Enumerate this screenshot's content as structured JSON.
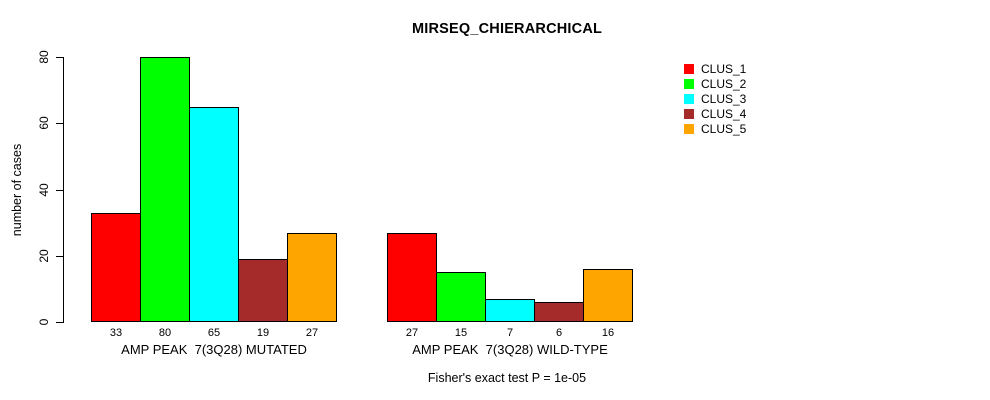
{
  "title": "MIRSEQ_CHIERARCHICAL",
  "footer": "Fisher's exact test P = 1e-05",
  "legend": {
    "position": "top-right",
    "items": [
      {
        "label": "CLUS_1",
        "color": "#FF0000"
      },
      {
        "label": "CLUS_2",
        "color": "#00FF00"
      },
      {
        "label": "CLUS_3",
        "color": "#00FFFF"
      },
      {
        "label": "CLUS_4",
        "color": "#A52A2A"
      },
      {
        "label": "CLUS_5",
        "color": "#FFA500"
      }
    ]
  },
  "chart_data": {
    "type": "bar",
    "title": "MIRSEQ_CHIERARCHICAL",
    "xlabel": "",
    "ylabel": "number of cases",
    "ylim": [
      0,
      80
    ],
    "y_ticks": [
      0,
      20,
      40,
      60,
      80
    ],
    "grid": false,
    "legend_position": "top-right",
    "categories": [
      "AMP PEAK  7(3Q28) MUTATED",
      "AMP PEAK  7(3Q28) WILD-TYPE"
    ],
    "series": [
      {
        "name": "CLUS_1",
        "color": "#FF0000",
        "values": [
          33,
          27
        ]
      },
      {
        "name": "CLUS_2",
        "color": "#00FF00",
        "values": [
          80,
          15
        ]
      },
      {
        "name": "CLUS_3",
        "color": "#00FFFF",
        "values": [
          65,
          7
        ]
      },
      {
        "name": "CLUS_4",
        "color": "#A52A2A",
        "values": [
          19,
          6
        ]
      },
      {
        "name": "CLUS_5",
        "color": "#FFA500",
        "values": [
          27,
          16
        ]
      }
    ],
    "bar_value_labels": [
      [
        33,
        80,
        65,
        19,
        27
      ],
      [
        27,
        15,
        7,
        6,
        16
      ]
    ],
    "annotation": "Fisher's exact test P = 1e-05"
  }
}
